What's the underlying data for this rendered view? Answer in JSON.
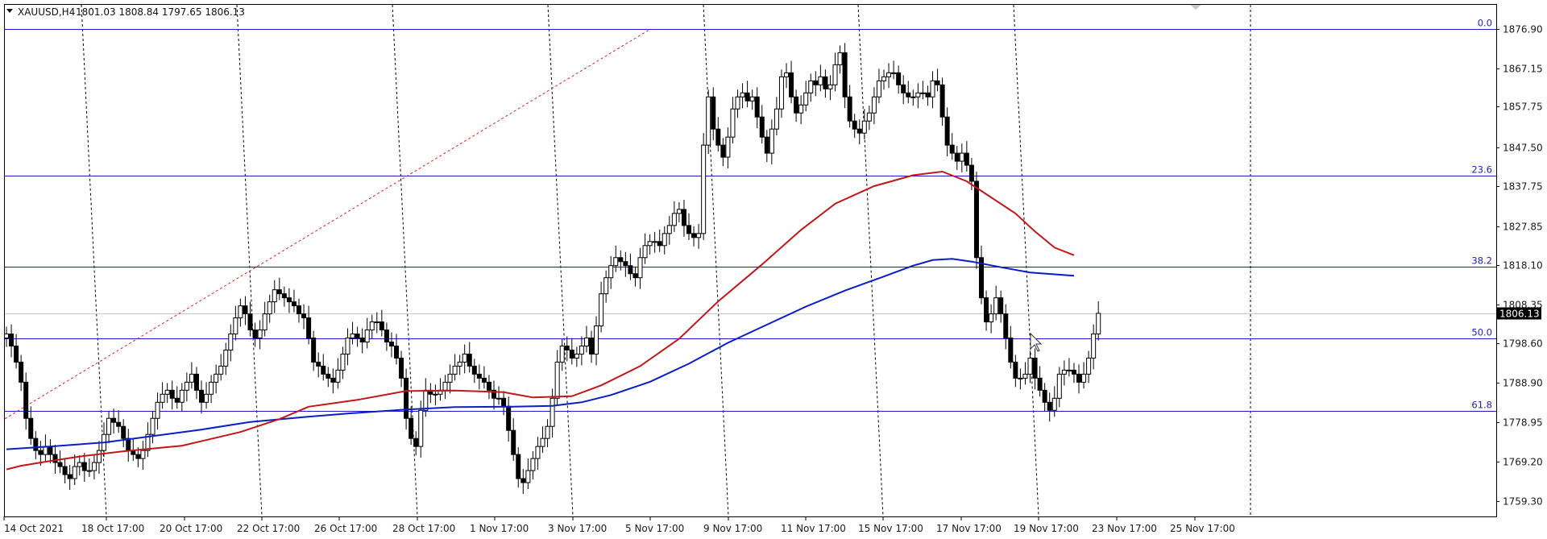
{
  "header": {
    "symbol_label": "XAUUSD,H4",
    "ohlc_label": "1801.03 1808.84 1797.65 1806.13"
  },
  "colors": {
    "background": "#ffffff",
    "frame": "#000000",
    "fib_line": "#1a1ad6",
    "fib_text": "#2020c8",
    "ma_fast": "#c01818",
    "ma_slow": "#0a1ec8",
    "trendline": "#e02020",
    "candle": "#000000",
    "price_tag_bg": "#000000"
  },
  "chart_data": {
    "type": "candlestick",
    "symbol": "XAUUSD",
    "timeframe": "H4",
    "last_price": 1806.13,
    "ylim": [
      1755.4,
      1881.6
    ],
    "y_ticks": [
      1876.9,
      1867.15,
      1857.75,
      1847.5,
      1837.75,
      1827.85,
      1818.1,
      1808.35,
      1798.6,
      1788.9,
      1778.95,
      1769.2,
      1759.3
    ],
    "x_ticks": [
      "14 Oct 2021",
      "18 Oct 17:00",
      "20 Oct 17:00",
      "22 Oct 17:00",
      "26 Oct 17:00",
      "28 Oct 17:00",
      "1 Nov 17:00",
      "3 Nov 17:00",
      "5 Nov 17:00",
      "9 Nov 17:00",
      "11 Nov 17:00",
      "15 Nov 17:00",
      "17 Nov 17:00",
      "19 Nov 17:00",
      "23 Nov 17:00",
      "25 Nov 17:00"
    ],
    "vgrid_at_tick_index": [
      1,
      3,
      5,
      7,
      9,
      11,
      13
    ],
    "grid": true,
    "fibonacci": [
      {
        "label": "0.0",
        "price": 1876.9
      },
      {
        "label": "23.6",
        "price": 1840.5
      },
      {
        "label": "38.2",
        "price": 1817.8
      },
      {
        "label": "50.0",
        "price": 1799.8
      },
      {
        "label": "61.8",
        "price": 1781.9
      }
    ],
    "closes": [
      1801,
      1798,
      1794,
      1789,
      1780,
      1775,
      1772,
      1771,
      1773,
      1771,
      1769,
      1768,
      1766,
      1765,
      1768,
      1769,
      1767,
      1767,
      1769,
      1772,
      1776,
      1780,
      1779,
      1778,
      1775,
      1772,
      1771,
      1770,
      1772,
      1776,
      1780,
      1784,
      1786,
      1787,
      1785,
      1784,
      1787,
      1789,
      1791,
      1787,
      1784,
      1786,
      1789,
      1791,
      1793,
      1797,
      1801,
      1805,
      1808,
      1806,
      1802,
      1800,
      1802,
      1806,
      1809,
      1812,
      1811,
      1810,
      1809,
      1808,
      1806,
      1805,
      1800,
      1794,
      1793,
      1791,
      1790,
      1789,
      1792,
      1796,
      1800,
      1801,
      1800,
      1799,
      1802,
      1804,
      1804,
      1802,
      1799,
      1798,
      1795,
      1790,
      1780,
      1775,
      1773,
      1782,
      1787,
      1786,
      1786,
      1787,
      1789,
      1791,
      1793,
      1794,
      1796,
      1793,
      1791,
      1790,
      1789,
      1787,
      1785,
      1785,
      1783,
      1777,
      1771,
      1765,
      1764,
      1767,
      1770,
      1773,
      1775,
      1778,
      1785,
      1794,
      1798,
      1797,
      1795,
      1796,
      1798,
      1800,
      1796,
      1803,
      1811,
      1815,
      1818,
      1820,
      1819,
      1818,
      1816,
      1815,
      1820,
      1823,
      1824,
      1824,
      1823,
      1826,
      1828,
      1831,
      1832,
      1828,
      1826,
      1825,
      1826,
      1848,
      1860,
      1852,
      1848,
      1845,
      1850,
      1857,
      1860,
      1861,
      1859,
      1860,
      1855,
      1850,
      1846,
      1852,
      1857,
      1865,
      1866,
      1860,
      1856,
      1858,
      1861,
      1864,
      1863,
      1865,
      1862,
      1863,
      1868,
      1871,
      1860,
      1854,
      1852,
      1851,
      1854,
      1856,
      1860,
      1864,
      1865,
      1866,
      1866,
      1863,
      1861,
      1860,
      1860,
      1861,
      1861,
      1860,
      1864,
      1863,
      1855,
      1848,
      1846,
      1844,
      1846,
      1843,
      1839,
      1820,
      1810,
      1804,
      1806,
      1810,
      1806,
      1800,
      1794,
      1790,
      1790,
      1791,
      1795,
      1790,
      1787,
      1784,
      1782,
      1785,
      1791,
      1792,
      1792,
      1791,
      1789,
      1791,
      1795,
      1801,
      1806.13
    ],
    "ma_fast": {
      "name": "",
      "points": [
        [
          0,
          1767.3
        ],
        [
          3,
          1768.2
        ],
        [
          8,
          1769.2
        ],
        [
          15,
          1770.5
        ],
        [
          24,
          1771.8
        ],
        [
          36,
          1773.2
        ],
        [
          48,
          1776.6
        ],
        [
          56,
          1779.8
        ],
        [
          62,
          1782.9
        ],
        [
          72,
          1784.6
        ],
        [
          82,
          1786.8
        ],
        [
          92,
          1786.9
        ],
        [
          102,
          1786.5
        ],
        [
          108,
          1785.2
        ],
        [
          116,
          1785.5
        ],
        [
          122,
          1788.2
        ],
        [
          130,
          1793.0
        ],
        [
          138,
          1799.8
        ],
        [
          146,
          1809.1
        ],
        [
          155,
          1818.3
        ],
        [
          163,
          1826.9
        ],
        [
          170,
          1833.4
        ],
        [
          178,
          1837.8
        ],
        [
          186,
          1840.5
        ],
        [
          192,
          1841.4
        ],
        [
          197,
          1839.0
        ],
        [
          202,
          1835.0
        ],
        [
          207,
          1831.0
        ],
        [
          211,
          1826.5
        ],
        [
          215,
          1822.5
        ],
        [
          219,
          1820.6
        ]
      ]
    },
    "ma_slow": {
      "name": "",
      "points": [
        [
          0,
          1772.3
        ],
        [
          10,
          1773.1
        ],
        [
          20,
          1774.0
        ],
        [
          30,
          1775.6
        ],
        [
          40,
          1777.2
        ],
        [
          50,
          1779.1
        ],
        [
          60,
          1780.2
        ],
        [
          70,
          1781.2
        ],
        [
          82,
          1782.2
        ],
        [
          92,
          1782.8
        ],
        [
          104,
          1782.9
        ],
        [
          112,
          1783.1
        ],
        [
          118,
          1784.0
        ],
        [
          124,
          1785.8
        ],
        [
          132,
          1789.1
        ],
        [
          140,
          1793.6
        ],
        [
          148,
          1798.8
        ],
        [
          156,
          1803.3
        ],
        [
          164,
          1807.8
        ],
        [
          172,
          1811.8
        ],
        [
          180,
          1815.3
        ],
        [
          186,
          1818.0
        ],
        [
          190,
          1819.4
        ],
        [
          194,
          1819.7
        ],
        [
          198,
          1819.0
        ],
        [
          204,
          1817.6
        ],
        [
          210,
          1816.3
        ],
        [
          219,
          1815.5
        ]
      ]
    },
    "trendline": {
      "style": "dotted",
      "from": {
        "bar": 0,
        "price": 1781.9
      },
      "to": {
        "bar": 109,
        "price": 1876.9
      }
    }
  }
}
